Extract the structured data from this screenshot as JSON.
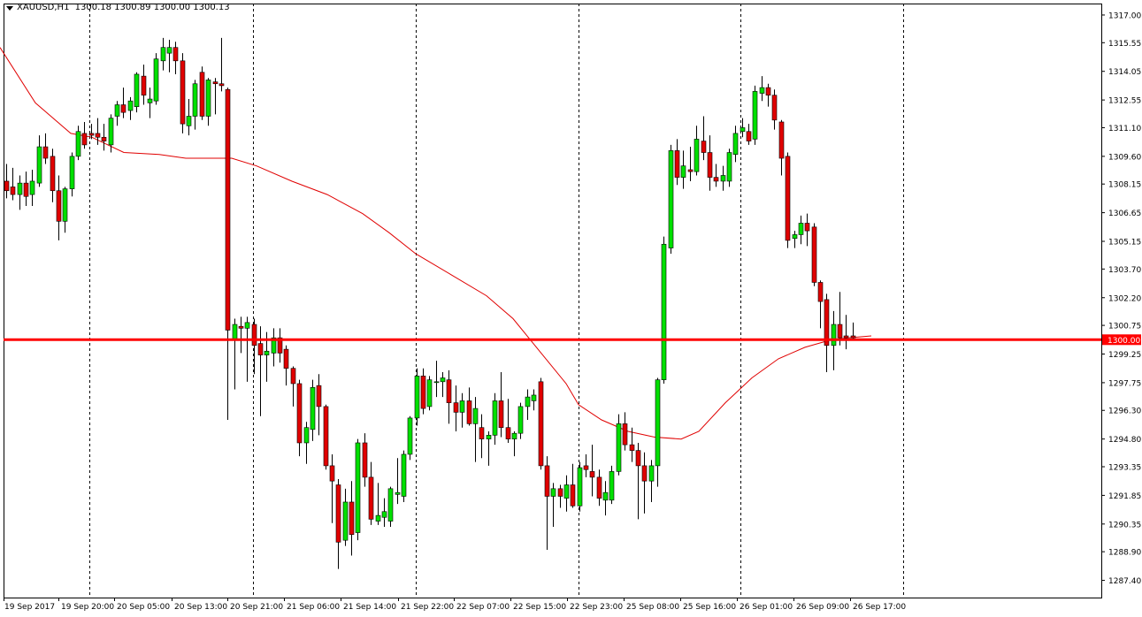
{
  "header": {
    "symbol": "XAUUSD,H1",
    "ohlc": "1300.18 1300.89 1300.00 1300.13"
  },
  "colors": {
    "bull": "#00e000",
    "bear": "#e00000",
    "wick": "#000000",
    "ma": "#e00000",
    "level": "#ff0000",
    "grid": "#000000",
    "price_badge_bg": "#ff0000",
    "price_badge_text": "#ffffff"
  },
  "chart_data": {
    "type": "candlestick",
    "symbol": "XAUUSD",
    "timeframe": "H1",
    "ylim": [
      1286.5,
      1317.6
    ],
    "yticks": [
      "1317.00",
      "1315.55",
      "1314.05",
      "1312.55",
      "1311.10",
      "1309.60",
      "1308.15",
      "1306.65",
      "1305.15",
      "1303.70",
      "1302.20",
      "1300.75",
      "1299.25",
      "1297.75",
      "1296.30",
      "1294.80",
      "1293.35",
      "1291.85",
      "1290.35",
      "1288.90",
      "1287.40"
    ],
    "current_price": "1300.00",
    "horizontal_level": 1300.0,
    "xlabels": [
      "19 Sep 2017",
      "19 Sep 20:00",
      "20 Sep 05:00",
      "20 Sep 13:00",
      "20 Sep 21:00",
      "21 Sep 06:00",
      "21 Sep 14:00",
      "21 Sep 22:00",
      "22 Sep 07:00",
      "22 Sep 15:00",
      "22 Sep 23:00",
      "25 Sep 08:00",
      "25 Sep 16:00",
      "26 Sep 01:00",
      "26 Sep 09:00",
      "26 Sep 17:00"
    ],
    "session_separators": 6,
    "candles": [
      [
        1308.3,
        1309.2,
        1307.4,
        1307.8
      ],
      [
        1308.0,
        1309.0,
        1307.3,
        1307.6
      ],
      [
        1307.6,
        1308.6,
        1306.8,
        1308.2
      ],
      [
        1308.2,
        1308.8,
        1307.0,
        1307.5
      ],
      [
        1307.6,
        1308.9,
        1307.0,
        1308.3
      ],
      [
        1308.2,
        1310.7,
        1308.0,
        1310.1
      ],
      [
        1310.1,
        1310.8,
        1309.2,
        1309.5
      ],
      [
        1309.6,
        1310.0,
        1307.2,
        1307.8
      ],
      [
        1307.8,
        1308.6,
        1305.2,
        1306.2
      ],
      [
        1306.2,
        1308.0,
        1305.6,
        1307.9
      ],
      [
        1307.9,
        1309.8,
        1307.5,
        1309.6
      ],
      [
        1309.6,
        1311.2,
        1309.4,
        1310.9
      ],
      [
        1310.8,
        1311.4,
        1310.0,
        1310.2
      ],
      [
        1310.8,
        1311.3,
        1310.5,
        1310.7
      ],
      [
        1310.8,
        1311.6,
        1310.2,
        1310.6
      ],
      [
        1310.6,
        1311.3,
        1309.9,
        1310.4
      ],
      [
        1310.2,
        1311.8,
        1309.8,
        1311.6
      ],
      [
        1311.7,
        1312.5,
        1311.2,
        1312.3
      ],
      [
        1312.3,
        1313.2,
        1311.6,
        1311.9
      ],
      [
        1312.0,
        1312.7,
        1311.5,
        1312.5
      ],
      [
        1312.2,
        1314.0,
        1311.9,
        1313.9
      ],
      [
        1313.8,
        1314.4,
        1312.3,
        1312.8
      ],
      [
        1312.4,
        1313.2,
        1311.6,
        1312.6
      ],
      [
        1312.5,
        1315.0,
        1312.3,
        1314.7
      ],
      [
        1314.6,
        1315.8,
        1314.1,
        1315.3
      ],
      [
        1315.0,
        1315.7,
        1314.0,
        1315.3
      ],
      [
        1315.3,
        1315.6,
        1313.9,
        1314.6
      ],
      [
        1314.6,
        1315.0,
        1310.8,
        1311.3
      ],
      [
        1311.2,
        1312.6,
        1310.7,
        1311.7
      ],
      [
        1311.7,
        1313.6,
        1311.0,
        1313.4
      ],
      [
        1314.0,
        1314.3,
        1311.5,
        1311.7
      ],
      [
        1311.7,
        1313.7,
        1311.2,
        1313.6
      ],
      [
        1313.5,
        1313.7,
        1311.8,
        1313.4
      ],
      [
        1313.4,
        1315.8,
        1313.0,
        1313.3
      ],
      [
        1313.1,
        1313.2,
        1295.8,
        1300.5
      ],
      [
        1300.0,
        1301.1,
        1297.4,
        1300.8
      ],
      [
        1300.7,
        1301.2,
        1299.3,
        1300.6
      ],
      [
        1300.6,
        1301.2,
        1297.8,
        1300.9
      ],
      [
        1300.8,
        1301.1,
        1298.2,
        1299.7
      ],
      [
        1299.8,
        1300.7,
        1296.0,
        1299.2
      ],
      [
        1299.2,
        1300.4,
        1297.8,
        1299.4
      ],
      [
        1299.3,
        1300.6,
        1298.6,
        1300.1
      ],
      [
        1300.1,
        1300.6,
        1298.8,
        1299.3
      ],
      [
        1299.5,
        1299.7,
        1297.6,
        1298.5
      ],
      [
        1298.5,
        1298.6,
        1296.5,
        1297.7
      ],
      [
        1297.7,
        1297.9,
        1293.9,
        1294.6
      ],
      [
        1294.6,
        1295.7,
        1293.5,
        1295.4
      ],
      [
        1295.3,
        1297.9,
        1294.7,
        1297.5
      ],
      [
        1297.6,
        1298.2,
        1295.0,
        1296.5
      ],
      [
        1296.5,
        1296.6,
        1293.2,
        1293.4
      ],
      [
        1293.4,
        1294.0,
        1290.4,
        1292.6
      ],
      [
        1292.4,
        1292.7,
        1288.0,
        1289.4
      ],
      [
        1289.5,
        1292.2,
        1289.2,
        1291.5
      ],
      [
        1291.5,
        1292.6,
        1288.7,
        1289.8
      ],
      [
        1289.9,
        1294.8,
        1289.5,
        1294.6
      ],
      [
        1294.6,
        1295.1,
        1292.3,
        1292.8
      ],
      [
        1292.8,
        1293.6,
        1290.3,
        1290.6
      ],
      [
        1290.5,
        1292.5,
        1290.3,
        1290.8
      ],
      [
        1290.7,
        1291.7,
        1290.2,
        1291.0
      ],
      [
        1290.5,
        1292.3,
        1290.2,
        1292.2
      ],
      [
        1291.9,
        1293.8,
        1291.4,
        1292.0
      ],
      [
        1291.8,
        1294.2,
        1291.5,
        1294.0
      ],
      [
        1294.0,
        1296.0,
        1293.7,
        1295.9
      ],
      [
        1295.9,
        1298.5,
        1295.5,
        1298.1
      ],
      [
        1298.1,
        1298.5,
        1296.1,
        1296.4
      ],
      [
        1296.5,
        1298.1,
        1296.3,
        1297.9
      ],
      [
        1297.8,
        1298.9,
        1297.0,
        1297.8
      ],
      [
        1297.8,
        1298.3,
        1297.0,
        1298.0
      ],
      [
        1297.9,
        1298.4,
        1295.6,
        1296.7
      ],
      [
        1296.7,
        1297.6,
        1295.2,
        1296.2
      ],
      [
        1296.2,
        1297.2,
        1295.4,
        1296.8
      ],
      [
        1296.8,
        1297.5,
        1295.5,
        1295.6
      ],
      [
        1295.6,
        1297.0,
        1293.6,
        1296.4
      ],
      [
        1295.4,
        1296.1,
        1293.8,
        1294.8
      ],
      [
        1294.8,
        1295.2,
        1293.4,
        1295.0
      ],
      [
        1295.0,
        1297.2,
        1294.5,
        1296.8
      ],
      [
        1296.8,
        1298.3,
        1294.9,
        1295.4
      ],
      [
        1295.4,
        1296.9,
        1294.6,
        1294.8
      ],
      [
        1294.8,
        1295.2,
        1293.9,
        1295.1
      ],
      [
        1295.1,
        1296.7,
        1294.8,
        1296.5
      ],
      [
        1296.5,
        1297.4,
        1295.8,
        1297.0
      ],
      [
        1296.8,
        1297.4,
        1296.3,
        1297.1
      ],
      [
        1297.8,
        1298.0,
        1293.2,
        1293.4
      ],
      [
        1293.4,
        1293.9,
        1289.0,
        1291.8
      ],
      [
        1291.8,
        1292.5,
        1290.2,
        1292.2
      ],
      [
        1292.2,
        1292.4,
        1291.2,
        1291.8
      ],
      [
        1291.7,
        1292.9,
        1291.0,
        1292.4
      ],
      [
        1292.4,
        1293.5,
        1291.2,
        1291.3
      ],
      [
        1291.3,
        1293.6,
        1291.0,
        1293.3
      ],
      [
        1293.4,
        1294.0,
        1292.8,
        1293.2
      ],
      [
        1293.1,
        1294.5,
        1291.8,
        1292.8
      ],
      [
        1292.8,
        1293.2,
        1291.3,
        1291.7
      ],
      [
        1291.6,
        1292.6,
        1290.8,
        1292.0
      ],
      [
        1291.6,
        1293.4,
        1291.4,
        1293.1
      ],
      [
        1293.1,
        1296.1,
        1292.9,
        1295.6
      ],
      [
        1295.6,
        1296.2,
        1294.2,
        1294.5
      ],
      [
        1294.5,
        1295.4,
        1293.6,
        1294.2
      ],
      [
        1294.2,
        1294.6,
        1290.6,
        1293.4
      ],
      [
        1293.4,
        1294.1,
        1290.9,
        1292.6
      ],
      [
        1292.6,
        1293.7,
        1291.5,
        1293.4
      ],
      [
        1293.4,
        1298.0,
        1292.3,
        1297.9
      ],
      [
        1297.9,
        1305.4,
        1297.7,
        1305.0
      ],
      [
        1304.8,
        1310.2,
        1304.5,
        1309.9
      ],
      [
        1309.9,
        1310.5,
        1308.1,
        1308.5
      ],
      [
        1308.5,
        1309.9,
        1307.9,
        1309.1
      ],
      [
        1308.9,
        1310.1,
        1308.3,
        1308.8
      ],
      [
        1308.8,
        1311.2,
        1308.6,
        1310.5
      ],
      [
        1310.4,
        1311.7,
        1309.4,
        1309.8
      ],
      [
        1309.8,
        1310.7,
        1307.8,
        1308.5
      ],
      [
        1308.5,
        1309.2,
        1308.0,
        1308.3
      ],
      [
        1308.3,
        1309.1,
        1307.8,
        1308.6
      ],
      [
        1308.3,
        1310.0,
        1308.0,
        1309.8
      ],
      [
        1309.7,
        1311.2,
        1309.3,
        1310.8
      ],
      [
        1310.9,
        1311.6,
        1310.6,
        1311.1
      ],
      [
        1310.9,
        1311.3,
        1310.2,
        1310.4
      ],
      [
        1310.5,
        1313.3,
        1310.2,
        1313.0
      ],
      [
        1312.9,
        1313.8,
        1312.5,
        1313.2
      ],
      [
        1313.2,
        1313.4,
        1312.2,
        1312.8
      ],
      [
        1312.8,
        1313.1,
        1311.0,
        1311.5
      ],
      [
        1311.4,
        1311.5,
        1308.6,
        1309.5
      ],
      [
        1309.6,
        1309.8,
        1304.8,
        1305.2
      ],
      [
        1305.3,
        1305.7,
        1304.8,
        1305.5
      ],
      [
        1305.5,
        1306.5,
        1305.0,
        1306.1
      ],
      [
        1306.1,
        1306.6,
        1304.9,
        1305.7
      ],
      [
        1305.9,
        1306.1,
        1302.8,
        1303.0
      ],
      [
        1303.0,
        1303.1,
        1300.6,
        1302.0
      ],
      [
        1302.1,
        1302.4,
        1298.3,
        1299.7
      ],
      [
        1299.7,
        1301.5,
        1298.4,
        1300.8
      ],
      [
        1300.8,
        1302.5,
        1299.7,
        1300.1
      ],
      [
        1300.2,
        1301.3,
        1299.5,
        1300.1
      ],
      [
        1300.2,
        1300.9,
        1300.0,
        1300.1
      ]
    ],
    "ma_period": 50,
    "ma": [
      [
        0,
        1315.3
      ],
      [
        40,
        1312.4
      ],
      [
        80,
        1310.8
      ],
      [
        104,
        1310.6
      ],
      [
        140,
        1309.8
      ],
      [
        180,
        1309.7
      ],
      [
        210,
        1309.5
      ],
      [
        250,
        1309.5
      ],
      [
        262,
        1309.5
      ],
      [
        290,
        1309.1
      ],
      [
        330,
        1308.3
      ],
      [
        370,
        1307.6
      ],
      [
        410,
        1306.6
      ],
      [
        440,
        1305.6
      ],
      [
        470,
        1304.5
      ],
      [
        510,
        1303.4
      ],
      [
        550,
        1302.3
      ],
      [
        580,
        1301.1
      ],
      [
        610,
        1299.4
      ],
      [
        640,
        1297.7
      ],
      [
        654,
        1296.6
      ],
      [
        680,
        1295.8
      ],
      [
        710,
        1295.2
      ],
      [
        740,
        1294.9
      ],
      [
        770,
        1294.8
      ],
      [
        790,
        1295.2
      ],
      [
        820,
        1296.7
      ],
      [
        850,
        1298.0
      ],
      [
        880,
        1299.0
      ],
      [
        910,
        1299.6
      ],
      [
        940,
        1300.0
      ],
      [
        960,
        1300.1
      ],
      [
        985,
        1300.2
      ]
    ]
  }
}
